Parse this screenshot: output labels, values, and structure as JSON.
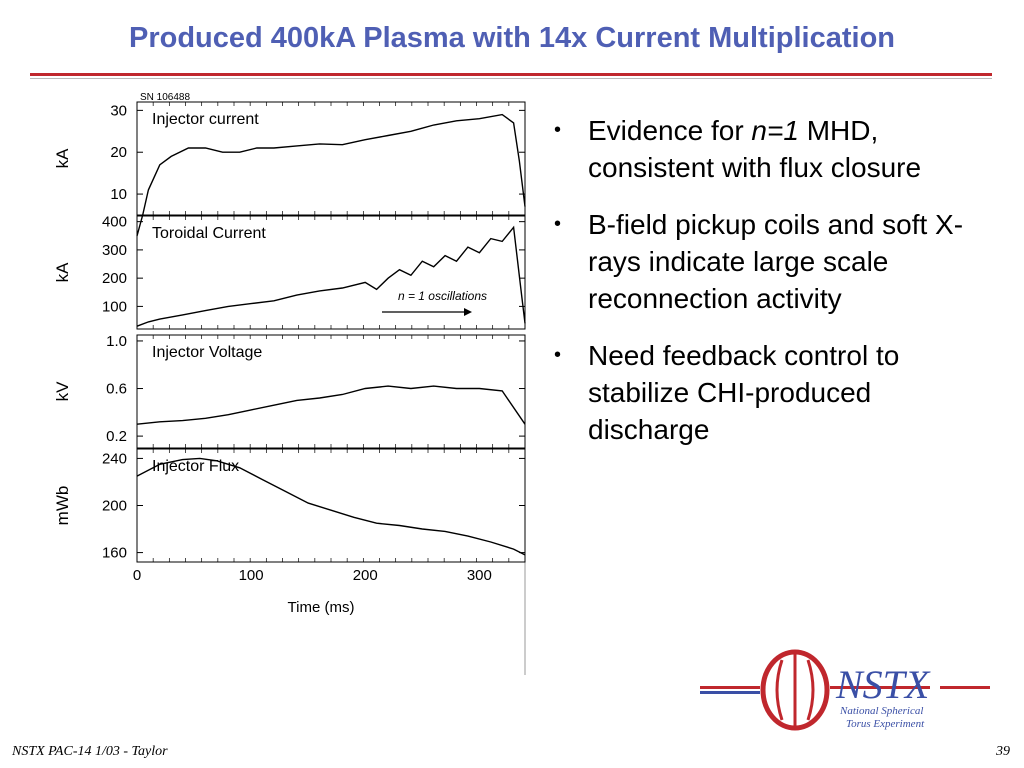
{
  "slide": {
    "title": "Produced 400kA Plasma with 14x Current Multiplication",
    "bullets": [
      {
        "pre": "Evidence for ",
        "em": "n=1",
        "post": " MHD, consistent with flux closure"
      },
      {
        "pre": "B-field pickup coils and soft X-rays indicate large scale reconnection activity",
        "em": "",
        "post": ""
      },
      {
        "pre": "Need feedback control to stabilize CHI-produced discharge",
        "em": "",
        "post": ""
      }
    ],
    "footer_left": "NSTX PAC-14 1/03 - Taylor",
    "page_number": "39",
    "logo": {
      "name": "NSTX",
      "line1": "National Spherical",
      "line2": "Torus Experiment",
      "colors": {
        "red": "#c0272d",
        "blue": "#3a4fa6"
      }
    }
  },
  "chart_data": {
    "type": "line",
    "shot_label": "SN 106488",
    "xlabel": "Time (ms)",
    "x_ticks": [
      "0",
      "100",
      "200",
      "300"
    ],
    "xlim": [
      0,
      340
    ],
    "color": "#000000",
    "panels": [
      {
        "name": "Injector current",
        "ylabel": "kA",
        "ylim": [
          5,
          32
        ],
        "y_ticks": [
          "10",
          "20",
          "30"
        ],
        "series": {
          "x": [
            0,
            5,
            10,
            20,
            30,
            45,
            60,
            75,
            90,
            105,
            120,
            140,
            160,
            180,
            200,
            220,
            240,
            260,
            280,
            300,
            320,
            330,
            335,
            340
          ],
          "y": [
            0,
            5,
            11,
            17,
            19,
            21,
            21,
            20,
            20,
            21,
            21,
            21.5,
            22,
            21.8,
            23,
            24,
            25,
            26.5,
            27.5,
            28,
            29,
            27,
            18,
            7
          ]
        }
      },
      {
        "name": "Toroidal Current",
        "ylabel": "kA",
        "ylim": [
          20,
          420
        ],
        "y_ticks": [
          "100",
          "200",
          "300",
          "400"
        ],
        "annotation": "n = 1 oscillations",
        "series": {
          "x": [
            0,
            10,
            20,
            40,
            60,
            80,
            100,
            120,
            140,
            160,
            180,
            200,
            210,
            220,
            230,
            240,
            250,
            260,
            270,
            280,
            290,
            300,
            310,
            320,
            330,
            337,
            340
          ],
          "y": [
            30,
            45,
            55,
            70,
            85,
            100,
            110,
            120,
            140,
            155,
            165,
            185,
            160,
            200,
            230,
            210,
            260,
            240,
            280,
            260,
            310,
            290,
            340,
            330,
            380,
            140,
            40
          ]
        }
      },
      {
        "name": "Injector Voltage",
        "ylabel": "kV",
        "ylim": [
          0.1,
          1.05
        ],
        "y_ticks": [
          "0.2",
          "0.6",
          "1.0"
        ],
        "series": {
          "x": [
            0,
            20,
            40,
            60,
            80,
            100,
            120,
            140,
            160,
            180,
            200,
            220,
            240,
            260,
            280,
            300,
            320,
            340
          ],
          "y": [
            0.3,
            0.32,
            0.33,
            0.35,
            0.38,
            0.42,
            0.46,
            0.5,
            0.52,
            0.55,
            0.6,
            0.62,
            0.6,
            0.62,
            0.6,
            0.6,
            0.58,
            0.3
          ]
        }
      },
      {
        "name": "Injector Flux",
        "ylabel": "mWb",
        "ylim": [
          152,
          248
        ],
        "y_ticks": [
          "160",
          "200",
          "240"
        ],
        "series": {
          "x": [
            0,
            20,
            40,
            55,
            70,
            90,
            110,
            130,
            150,
            170,
            190,
            210,
            230,
            250,
            270,
            290,
            310,
            330,
            340
          ],
          "y": [
            225,
            235,
            239,
            240,
            238,
            232,
            222,
            212,
            202,
            196,
            190,
            185,
            183,
            180,
            178,
            174,
            169,
            163,
            158
          ]
        }
      }
    ]
  }
}
